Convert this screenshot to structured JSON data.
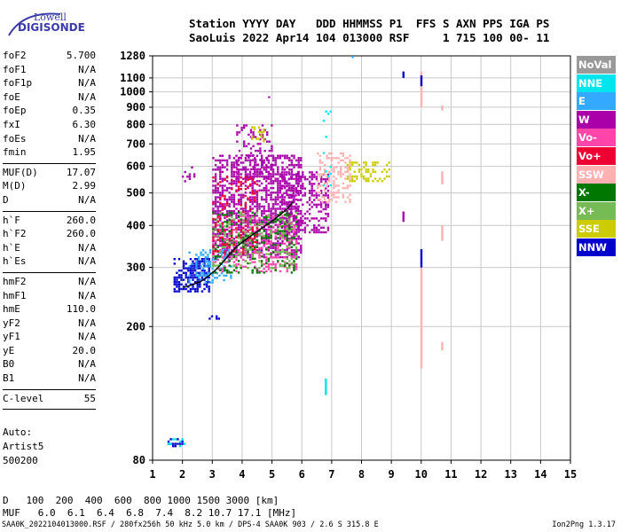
{
  "logo": {
    "line1": "Lowell",
    "line2": "DIGISONDE"
  },
  "header": {
    "line1": "Station YYYY DAY   DDD HHMMSS P1  FFS S AXN PPS IGA PS",
    "line2": "SaoLuis 2022 Apr14 104 013000 RSF     1 715 100 00- 11"
  },
  "params": [
    {
      "name": "foF2",
      "value": "5.700"
    },
    {
      "name": "foF1",
      "value": "N/A"
    },
    {
      "name": "foF1p",
      "value": "N/A"
    },
    {
      "name": "foE",
      "value": "N/A"
    },
    {
      "name": "foEp",
      "value": "0.35"
    },
    {
      "name": "fxI",
      "value": "6.30"
    },
    {
      "name": "foEs",
      "value": "N/A"
    },
    {
      "name": "fmin",
      "value": "1.95"
    },
    {
      "sep": true
    },
    {
      "name": "MUF(D)",
      "value": "17.07"
    },
    {
      "name": "M(D)",
      "value": "2.99"
    },
    {
      "name": "D",
      "value": "N/A"
    },
    {
      "sep": true
    },
    {
      "name": "h`F",
      "value": "260.0"
    },
    {
      "name": "h`F2",
      "value": "260.0"
    },
    {
      "name": "h`E",
      "value": "N/A"
    },
    {
      "name": "h`Es",
      "value": "N/A"
    },
    {
      "sep": true
    },
    {
      "name": "hmF2",
      "value": "N/A"
    },
    {
      "name": "hmF1",
      "value": "N/A"
    },
    {
      "name": "hmE",
      "value": "110.0"
    },
    {
      "name": "yF2",
      "value": "N/A"
    },
    {
      "name": "yF1",
      "value": "N/A"
    },
    {
      "name": "yE",
      "value": "20.0"
    },
    {
      "name": "B0",
      "value": "N/A"
    },
    {
      "name": "B1",
      "value": "N/A"
    },
    {
      "sep": true
    },
    {
      "name": "C-level",
      "value": "55"
    },
    {
      "sep": true
    }
  ],
  "auto": {
    "line1": "Auto:",
    "line2": "Artist5",
    "line3": "500200"
  },
  "legend": [
    {
      "label": "NoVal",
      "color": "#999999"
    },
    {
      "label": "NNE",
      "color": "#00e5ee"
    },
    {
      "label": "E",
      "color": "#33aaff"
    },
    {
      "label": "W",
      "color": "#aa00aa"
    },
    {
      "label": "Vo-",
      "color": "#ff44aa"
    },
    {
      "label": "Vo+",
      "color": "#ee0033"
    },
    {
      "label": "SSW",
      "color": "#ffb0b0"
    },
    {
      "label": "X-",
      "color": "#007700"
    },
    {
      "label": "X+",
      "color": "#77bb55"
    },
    {
      "label": "SSE",
      "color": "#cccc00"
    },
    {
      "label": "NNW",
      "color": "#0000cc"
    }
  ],
  "muf_table": {
    "d_label": "D",
    "d_values": "   100  200  400  600  800 1000 1500 3000 [km]",
    "muf_label": "MUF",
    "muf_values": "   6.0  6.1  6.4  6.8  7.4  8.2 10.7 17.1 [MHz]"
  },
  "footer": {
    "left": "SAA0K_2022104013000.RSF / 280fx256h 50 kHz 5.0 km / DPS-4 SAA0K 903 / 2.6 S 315.8 E",
    "version": "Ion2Png 1.3.17"
  },
  "chart_data": {
    "type": "scatter",
    "xlim": [
      1,
      15
    ],
    "ylim": [
      80,
      1280
    ],
    "x_ticks": [
      1,
      2,
      3,
      4,
      5,
      6,
      7,
      8,
      9,
      10,
      11,
      12,
      13,
      14,
      15
    ],
    "y_ticks": [
      80,
      200,
      300,
      400,
      500,
      600,
      700,
      800,
      900,
      1000,
      1100,
      1280
    ],
    "y_scale": "log",
    "grid": true,
    "legend_position": "right",
    "trace": [
      [
        2.05,
        262
      ],
      [
        2.3,
        266
      ],
      [
        2.6,
        272
      ],
      [
        2.9,
        284
      ],
      [
        3.2,
        300
      ],
      [
        3.5,
        322
      ],
      [
        3.8,
        345
      ],
      [
        4.1,
        362
      ],
      [
        4.4,
        378
      ],
      [
        4.7,
        395
      ],
      [
        5.0,
        412
      ],
      [
        5.3,
        432
      ],
      [
        5.55,
        452
      ],
      [
        5.7,
        470
      ]
    ],
    "regions": [
      {
        "color": "#aa00aa",
        "x": [
          3.0,
          6.0
        ],
        "y": [
          320,
          650
        ],
        "density": 0.55
      },
      {
        "color": "#aa00aa",
        "x": [
          3.8,
          5.0
        ],
        "y": [
          550,
          800
        ],
        "density": 0.25
      },
      {
        "color": "#aa00aa",
        "x": [
          5.3,
          6.9
        ],
        "y": [
          380,
          580
        ],
        "density": 0.45
      },
      {
        "color": "#0000cc",
        "x": [
          1.7,
          2.9
        ],
        "y": [
          255,
          320
        ],
        "density": 0.6
      },
      {
        "color": "#33aaff",
        "x": [
          2.2,
          3.6
        ],
        "y": [
          270,
          340
        ],
        "density": 0.3
      },
      {
        "color": "#ff44aa",
        "x": [
          3.0,
          5.8
        ],
        "y": [
          290,
          430
        ],
        "density": 0.25
      },
      {
        "color": "#007700",
        "x": [
          3.0,
          5.8
        ],
        "y": [
          290,
          440
        ],
        "density": 0.22
      },
      {
        "color": "#77bb55",
        "x": [
          3.0,
          5.8
        ],
        "y": [
          300,
          440
        ],
        "density": 0.15
      },
      {
        "color": "#ee0033",
        "x": [
          3.0,
          4.5
        ],
        "y": [
          330,
          560
        ],
        "density": 0.15
      },
      {
        "color": "#cccc00",
        "x": [
          4.3,
          4.7
        ],
        "y": [
          710,
          790
        ],
        "density": 0.3
      },
      {
        "color": "#cccc00",
        "x": [
          7.5,
          8.9
        ],
        "y": [
          540,
          620
        ],
        "density": 0.35
      },
      {
        "color": "#ffb0b0",
        "x": [
          6.5,
          7.6
        ],
        "y": [
          470,
          660
        ],
        "density": 0.35
      },
      {
        "color": "#00e5ee",
        "x": [
          6.7,
          7.0
        ],
        "y": [
          480,
          880
        ],
        "density": 0.12
      },
      {
        "color": "#aa00aa",
        "x": [
          1.9,
          2.4
        ],
        "y": [
          540,
          600
        ],
        "density": 0.2
      },
      {
        "color": "#0000cc",
        "x": [
          2.8,
          3.2
        ],
        "y": [
          210,
          216
        ],
        "density": 0.5
      },
      {
        "color": "#0000cc",
        "x": [
          1.5,
          2.1
        ],
        "y": [
          88,
          93
        ],
        "density": 0.4
      },
      {
        "color": "#00e5ee",
        "x": [
          1.5,
          2.1
        ],
        "y": [
          88,
          93
        ],
        "density": 0.3
      }
    ],
    "streaks": [
      {
        "color": "#0000cc",
        "x": 9.4,
        "y": [
          1100,
          1150
        ]
      },
      {
        "color": "#ffb0b0",
        "x": 10.0,
        "y": [
          900,
          1150
        ]
      },
      {
        "color": "#0000cc",
        "x": 10.0,
        "y": [
          1040,
          1120
        ]
      },
      {
        "color": "#ffb0b0",
        "x": 10.7,
        "y": [
          880,
          910
        ]
      },
      {
        "color": "#ffb0b0",
        "x": 10.0,
        "y": [
          150,
          300
        ]
      },
      {
        "color": "#0000cc",
        "x": 10.0,
        "y": [
          300,
          340
        ]
      },
      {
        "color": "#ffb0b0",
        "x": 10.7,
        "y": [
          360,
          400
        ]
      },
      {
        "color": "#aa00aa",
        "x": 9.4,
        "y": [
          410,
          440
        ]
      },
      {
        "color": "#ffb0b0",
        "x": 10.7,
        "y": [
          530,
          580
        ]
      },
      {
        "color": "#33aaff",
        "x": 7.7,
        "y": [
          1260,
          1280
        ]
      },
      {
        "color": "#00e5ee",
        "x": 6.8,
        "y": [
          125,
          140
        ]
      },
      {
        "color": "#ffb0b0",
        "x": 10.7,
        "y": [
          170,
          180
        ]
      },
      {
        "color": "#aa00aa",
        "x": 4.9,
        "y": [
          960,
          970
        ]
      }
    ]
  }
}
